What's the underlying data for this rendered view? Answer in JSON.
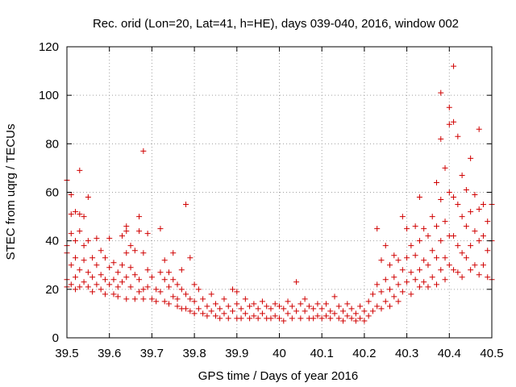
{
  "chart_data": {
    "type": "scatter",
    "title": "Rec. orid (Lon=20, Lat=41, h=HE), days 039-040, 2016, window 002",
    "xlabel": "GPS time / Days of year 2016",
    "ylabel": "STEC from uqrg / TECUs",
    "xlim": [
      39.5,
      40.5
    ],
    "ylim": [
      0,
      120
    ],
    "xticks": [
      "39.5",
      "39.6",
      "39.7",
      "39.8",
      "39.9",
      "40",
      "40.1",
      "40.2",
      "40.3",
      "40.4",
      "40.5"
    ],
    "yticks": [
      "0",
      "20",
      "40",
      "60",
      "80",
      "100",
      "120"
    ],
    "grid": true,
    "marker": "+",
    "color": "#d00000",
    "series": [
      {
        "name": "",
        "points": [
          [
            39.5,
            65
          ],
          [
            39.5,
            38
          ],
          [
            39.5,
            35
          ],
          [
            39.5,
            24
          ],
          [
            39.5,
            21
          ],
          [
            39.51,
            59
          ],
          [
            39.51,
            51
          ],
          [
            39.51,
            43
          ],
          [
            39.51,
            30
          ],
          [
            39.51,
            22
          ],
          [
            39.52,
            52
          ],
          [
            39.52,
            40
          ],
          [
            39.52,
            33
          ],
          [
            39.52,
            25
          ],
          [
            39.52,
            20
          ],
          [
            39.53,
            69
          ],
          [
            39.53,
            51
          ],
          [
            39.53,
            44
          ],
          [
            39.53,
            28
          ],
          [
            39.53,
            21
          ],
          [
            39.54,
            50
          ],
          [
            39.54,
            38
          ],
          [
            39.54,
            32
          ],
          [
            39.54,
            23
          ],
          [
            39.55,
            58
          ],
          [
            39.55,
            40
          ],
          [
            39.55,
            27
          ],
          [
            39.55,
            21
          ],
          [
            39.56,
            33
          ],
          [
            39.56,
            25
          ],
          [
            39.56,
            19
          ],
          [
            39.57,
            41
          ],
          [
            39.57,
            30
          ],
          [
            39.57,
            22
          ],
          [
            39.58,
            36
          ],
          [
            39.58,
            26
          ],
          [
            39.58,
            20
          ],
          [
            39.59,
            33
          ],
          [
            39.59,
            24
          ],
          [
            39.59,
            18
          ],
          [
            39.6,
            41
          ],
          [
            39.6,
            29
          ],
          [
            39.6,
            22
          ],
          [
            39.61,
            31
          ],
          [
            39.61,
            24
          ],
          [
            39.61,
            18
          ],
          [
            39.62,
            27
          ],
          [
            39.62,
            21
          ],
          [
            39.62,
            17
          ],
          [
            39.63,
            42
          ],
          [
            39.63,
            30
          ],
          [
            39.63,
            23
          ],
          [
            39.64,
            46
          ],
          [
            39.64,
            44
          ],
          [
            39.64,
            35
          ],
          [
            39.64,
            25
          ],
          [
            39.64,
            16
          ],
          [
            39.65,
            38
          ],
          [
            39.65,
            29
          ],
          [
            39.65,
            21
          ],
          [
            39.66,
            36
          ],
          [
            39.66,
            26
          ],
          [
            39.66,
            16
          ],
          [
            39.67,
            50
          ],
          [
            39.67,
            44
          ],
          [
            39.67,
            24
          ],
          [
            39.67,
            19
          ],
          [
            39.68,
            77
          ],
          [
            39.68,
            35
          ],
          [
            39.68,
            20
          ],
          [
            39.68,
            16
          ],
          [
            39.69,
            43
          ],
          [
            39.69,
            28
          ],
          [
            39.69,
            21
          ],
          [
            39.7,
            25
          ],
          [
            39.7,
            16
          ],
          [
            39.71,
            20
          ],
          [
            39.71,
            15
          ],
          [
            39.72,
            45
          ],
          [
            39.72,
            27
          ],
          [
            39.72,
            19
          ],
          [
            39.73,
            32
          ],
          [
            39.73,
            24
          ],
          [
            39.73,
            15
          ],
          [
            39.74,
            27
          ],
          [
            39.74,
            21
          ],
          [
            39.74,
            14
          ],
          [
            39.75,
            35
          ],
          [
            39.75,
            24
          ],
          [
            39.75,
            17
          ],
          [
            39.76,
            22
          ],
          [
            39.76,
            16
          ],
          [
            39.76,
            13
          ],
          [
            39.77,
            28
          ],
          [
            39.77,
            20
          ],
          [
            39.77,
            12
          ],
          [
            39.78,
            55
          ],
          [
            39.78,
            18
          ],
          [
            39.78,
            12
          ],
          [
            39.79,
            33
          ],
          [
            39.79,
            16
          ],
          [
            39.79,
            11
          ],
          [
            39.8,
            22
          ],
          [
            39.8,
            15
          ],
          [
            39.8,
            10
          ],
          [
            39.81,
            20
          ],
          [
            39.81,
            12
          ],
          [
            39.82,
            16
          ],
          [
            39.82,
            10
          ],
          [
            39.83,
            13
          ],
          [
            39.83,
            9
          ],
          [
            39.84,
            18
          ],
          [
            39.84,
            11
          ],
          [
            39.85,
            14
          ],
          [
            39.85,
            9
          ],
          [
            39.86,
            12
          ],
          [
            39.86,
            8
          ],
          [
            39.87,
            16
          ],
          [
            39.87,
            10
          ],
          [
            39.88,
            13
          ],
          [
            39.88,
            8
          ],
          [
            39.89,
            20
          ],
          [
            39.89,
            11
          ],
          [
            39.9,
            19
          ],
          [
            39.9,
            14
          ],
          [
            39.9,
            8
          ],
          [
            39.91,
            12
          ],
          [
            39.91,
            8
          ],
          [
            39.92,
            16
          ],
          [
            39.92,
            10
          ],
          [
            39.93,
            13
          ],
          [
            39.93,
            8
          ],
          [
            39.94,
            14
          ],
          [
            39.94,
            9
          ],
          [
            39.95,
            12
          ],
          [
            39.95,
            8
          ],
          [
            39.96,
            15
          ],
          [
            39.96,
            10
          ],
          [
            39.97,
            13
          ],
          [
            39.97,
            8
          ],
          [
            39.98,
            12
          ],
          [
            39.98,
            8
          ],
          [
            39.99,
            14
          ],
          [
            39.99,
            9
          ],
          [
            40.0,
            13
          ],
          [
            40.0,
            8
          ],
          [
            40.01,
            12
          ],
          [
            40.01,
            7
          ],
          [
            40.02,
            15
          ],
          [
            40.02,
            10
          ],
          [
            40.03,
            13
          ],
          [
            40.03,
            8
          ],
          [
            40.04,
            23
          ],
          [
            40.04,
            11
          ],
          [
            40.05,
            14
          ],
          [
            40.05,
            8
          ],
          [
            40.06,
            16
          ],
          [
            40.06,
            11
          ],
          [
            40.07,
            13
          ],
          [
            40.07,
            8
          ],
          [
            40.08,
            12
          ],
          [
            40.08,
            8
          ],
          [
            40.09,
            14
          ],
          [
            40.09,
            9
          ],
          [
            40.1,
            12
          ],
          [
            40.1,
            8
          ],
          [
            40.11,
            14
          ],
          [
            40.11,
            9
          ],
          [
            40.12,
            11
          ],
          [
            40.12,
            8
          ],
          [
            40.13,
            17
          ],
          [
            40.13,
            10
          ],
          [
            40.14,
            13
          ],
          [
            40.14,
            8
          ],
          [
            40.15,
            11
          ],
          [
            40.15,
            7
          ],
          [
            40.16,
            14
          ],
          [
            40.16,
            9
          ],
          [
            40.17,
            12
          ],
          [
            40.17,
            8
          ],
          [
            40.18,
            10
          ],
          [
            40.18,
            7
          ],
          [
            40.19,
            13
          ],
          [
            40.19,
            8
          ],
          [
            40.2,
            11
          ],
          [
            40.2,
            7
          ],
          [
            40.21,
            15
          ],
          [
            40.21,
            9
          ],
          [
            40.22,
            18
          ],
          [
            40.22,
            11
          ],
          [
            40.23,
            45
          ],
          [
            40.23,
            22
          ],
          [
            40.23,
            13
          ],
          [
            40.24,
            32
          ],
          [
            40.24,
            19
          ],
          [
            40.24,
            12
          ],
          [
            40.25,
            38
          ],
          [
            40.25,
            24
          ],
          [
            40.25,
            15
          ],
          [
            40.26,
            30
          ],
          [
            40.26,
            20
          ],
          [
            40.26,
            13
          ],
          [
            40.27,
            34
          ],
          [
            40.27,
            25
          ],
          [
            40.27,
            17
          ],
          [
            40.28,
            32
          ],
          [
            40.28,
            22
          ],
          [
            40.28,
            15
          ],
          [
            40.29,
            50
          ],
          [
            40.29,
            28
          ],
          [
            40.29,
            19
          ],
          [
            40.3,
            45
          ],
          [
            40.3,
            33
          ],
          [
            40.3,
            23
          ],
          [
            40.31,
            38
          ],
          [
            40.31,
            27
          ],
          [
            40.31,
            18
          ],
          [
            40.32,
            46
          ],
          [
            40.32,
            34
          ],
          [
            40.32,
            24
          ],
          [
            40.33,
            58
          ],
          [
            40.33,
            40
          ],
          [
            40.33,
            28
          ],
          [
            40.33,
            21
          ],
          [
            40.34,
            45
          ],
          [
            40.34,
            32
          ],
          [
            40.34,
            23
          ],
          [
            40.35,
            42
          ],
          [
            40.35,
            30
          ],
          [
            40.35,
            21
          ],
          [
            40.36,
            50
          ],
          [
            40.36,
            36
          ],
          [
            40.36,
            25
          ],
          [
            40.37,
            64
          ],
          [
            40.37,
            46
          ],
          [
            40.37,
            33
          ],
          [
            40.37,
            22
          ],
          [
            40.38,
            101
          ],
          [
            40.38,
            82
          ],
          [
            40.38,
            57
          ],
          [
            40.38,
            40
          ],
          [
            40.38,
            28
          ],
          [
            40.39,
            70
          ],
          [
            40.39,
            48
          ],
          [
            40.39,
            33
          ],
          [
            40.39,
            24
          ],
          [
            40.4,
            88
          ],
          [
            40.4,
            95
          ],
          [
            40.4,
            60
          ],
          [
            40.4,
            42
          ],
          [
            40.4,
            30
          ],
          [
            40.41,
            112
          ],
          [
            40.41,
            89
          ],
          [
            40.41,
            58
          ],
          [
            40.41,
            42
          ],
          [
            40.41,
            28
          ],
          [
            40.42,
            83
          ],
          [
            40.42,
            55
          ],
          [
            40.42,
            38
          ],
          [
            40.42,
            27
          ],
          [
            40.43,
            67
          ],
          [
            40.43,
            50
          ],
          [
            40.43,
            35
          ],
          [
            40.43,
            25
          ],
          [
            40.44,
            61
          ],
          [
            40.44,
            46
          ],
          [
            40.44,
            33
          ],
          [
            40.45,
            74
          ],
          [
            40.45,
            52
          ],
          [
            40.45,
            38
          ],
          [
            40.45,
            28
          ],
          [
            40.46,
            59
          ],
          [
            40.46,
            44
          ],
          [
            40.46,
            30
          ],
          [
            40.47,
            86
          ],
          [
            40.47,
            53
          ],
          [
            40.47,
            40
          ],
          [
            40.47,
            26
          ],
          [
            40.48,
            55
          ],
          [
            40.48,
            42
          ],
          [
            40.48,
            30
          ],
          [
            40.49,
            48
          ],
          [
            40.49,
            36
          ],
          [
            40.49,
            25
          ],
          [
            40.5,
            55
          ],
          [
            40.5,
            40
          ],
          [
            40.5,
            24
          ]
        ]
      }
    ]
  }
}
